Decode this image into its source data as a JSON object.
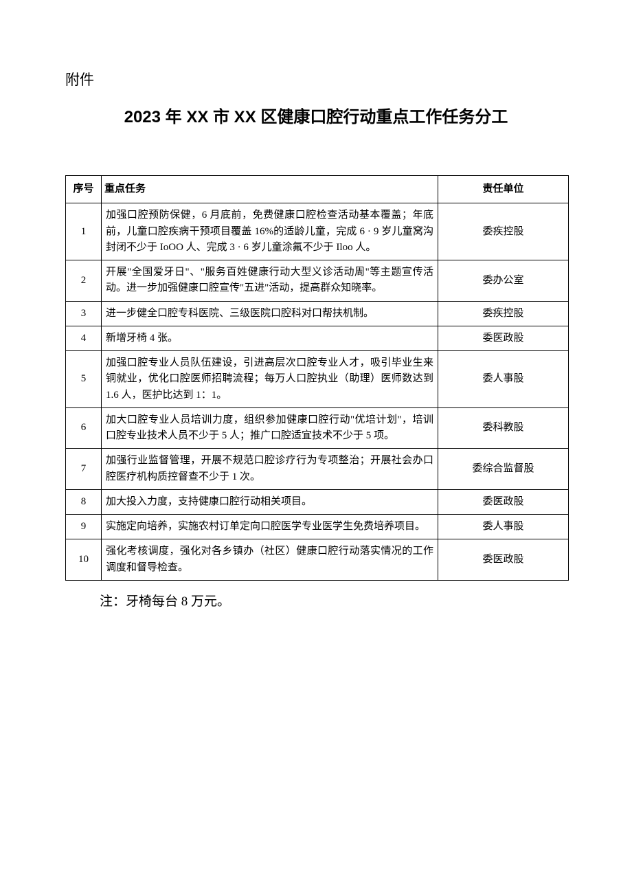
{
  "labels": {
    "attachment": "附件",
    "title": "2023 年 XX 市 XX 区健康口腔行动重点工作任务分工",
    "footnote": "注：牙椅每台 8 万元。"
  },
  "table": {
    "headers": {
      "seq": "序号",
      "task": "重点任务",
      "dept": "责任单位"
    },
    "rows": [
      {
        "seq": "1",
        "task": "加强口腔预防保健，6 月底前，免费健康口腔检查活动基本覆盖；年底前，儿童口腔疾病干预项目覆盖 16%的适龄儿童，完成 6 · 9 岁儿童窝沟封闭不少于 IoOO 人、完成 3 · 6 岁儿童涂氟不少于 Iloo 人。",
        "dept": "委疾控股"
      },
      {
        "seq": "2",
        "task": "开展\"全国爱牙日\"、\"服务百姓健康行动大型义诊活动周\"等主题宣传活动。进一步加强健康口腔宣传\"五进\"活动，提高群众知晓率。",
        "dept": "委办公室"
      },
      {
        "seq": "3",
        "task": "进一步健全口腔专科医院、三级医院口腔科对口帮扶机制。",
        "dept": "委疾控股"
      },
      {
        "seq": "4",
        "task": "新增牙椅 4 张。",
        "dept": "委医政股"
      },
      {
        "seq": "5",
        "task": "加强口腔专业人员队伍建设，引进高层次口腔专业人才，吸引毕业生来铜就业，优化口腔医师招聘流程；每万人口腔执业（助理）医师数达到 1.6 人，医护比达到 1：1。",
        "dept": "委人事股"
      },
      {
        "seq": "6",
        "task": "加大口腔专业人员培训力度，组织参加健康口腔行动\"优培计划\"，培训口腔专业技术人员不少于 5 人；推广口腔适宜技术不少于 5 项。",
        "dept": "委科教股"
      },
      {
        "seq": "7",
        "task": "加强行业监督管理，开展不规范口腔诊疗行为专项整治；开展社会办口腔医疗机构质控督查不少于 1 次。",
        "dept": "委综合监督股"
      },
      {
        "seq": "8",
        "task": "加大投入力度，支持健康口腔行动相关项目。",
        "dept": "委医政股"
      },
      {
        "seq": "9",
        "task": "实施定向培养，实施农村订单定向口腔医学专业医学生免费培养项目。",
        "dept": "委人事股"
      },
      {
        "seq": "10",
        "task": "强化考核调度，强化对各乡镇办（社区）健康口腔行动落实情况的工作调度和督导检查。",
        "dept": "委医政股"
      }
    ]
  }
}
